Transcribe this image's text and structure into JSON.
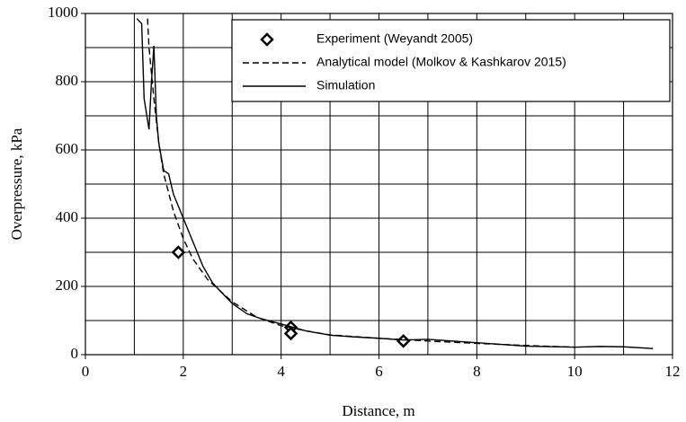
{
  "chart_data": {
    "type": "line",
    "xlabel": "Distance, m",
    "ylabel": "Overpressure, kPa",
    "xlim": [
      0,
      12
    ],
    "xticks": [
      0,
      2,
      4,
      6,
      8,
      10,
      12
    ],
    "ylim": [
      0,
      1000
    ],
    "yticks": [
      0,
      200,
      400,
      600,
      800,
      1000
    ],
    "xgrid": [
      1,
      2,
      3,
      4,
      5,
      6,
      7,
      8,
      9,
      10,
      11
    ],
    "ygrid": [
      100,
      200,
      300,
      400,
      500,
      600,
      700,
      800,
      900
    ],
    "grid": true,
    "legend": "upper right",
    "series": [
      {
        "name": "Experiment (Weyandt 2005)",
        "color": "#000000",
        "style": "marker",
        "x": [
          1.9,
          4.2,
          4.2,
          6.5
        ],
        "values": [
          300,
          80,
          62,
          40
        ]
      },
      {
        "name": "Analytical model (Molkov & Kashkarov 2015)",
        "color": "#000000",
        "style": "dashed",
        "x": [
          1.27,
          1.3,
          1.4,
          1.5,
          1.6,
          1.8,
          2,
          2.2,
          2.5,
          3,
          3.5,
          4,
          4.5,
          5,
          6,
          7,
          8,
          9,
          10
        ],
        "values": [
          985,
          900,
          750,
          620,
          530,
          420,
          340,
          280,
          220,
          155,
          110,
          85,
          70,
          58,
          48,
          40,
          33,
          27,
          22
        ]
      },
      {
        "name": "Simulation",
        "color": "#000000",
        "style": "solid",
        "x": [
          1.05,
          1.15,
          1.2,
          1.3,
          1.35,
          1.4,
          1.45,
          1.5,
          1.6,
          1.7,
          1.8,
          2,
          2.2,
          2.4,
          2.6,
          2.8,
          3,
          3.3,
          3.6,
          4,
          4.5,
          5,
          5.5,
          6,
          6.5,
          7,
          7.5,
          8,
          8.5,
          9,
          10,
          10.5,
          11,
          11.6
        ],
        "values": [
          985,
          970,
          750,
          660,
          800,
          905,
          700,
          620,
          540,
          530,
          470,
          400,
          330,
          260,
          210,
          180,
          150,
          120,
          105,
          90,
          70,
          57,
          52,
          48,
          43,
          45,
          40,
          35,
          30,
          25,
          22,
          24,
          23,
          18
        ]
      }
    ]
  }
}
